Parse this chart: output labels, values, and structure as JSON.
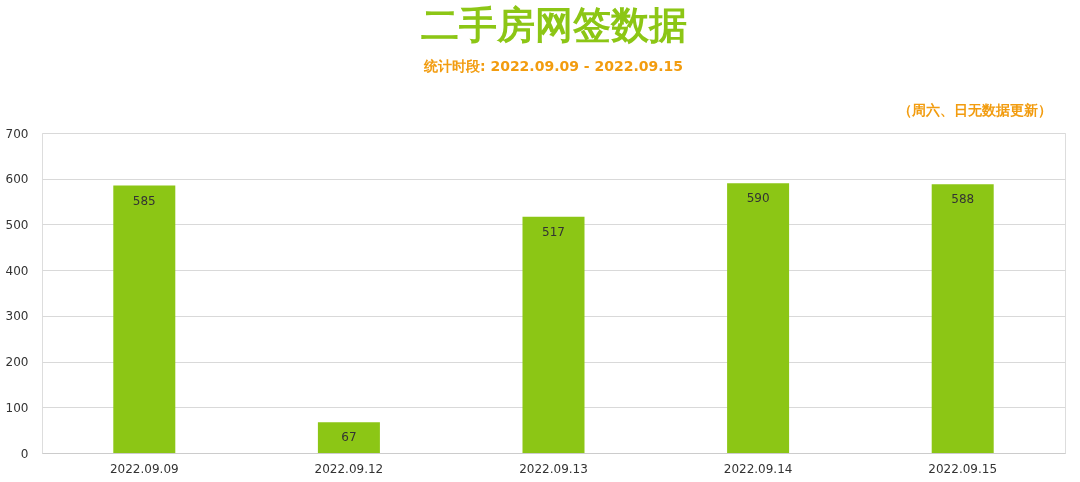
{
  "chart_data": {
    "type": "bar",
    "title": "二手房网签数据",
    "subtitle": "统计时段: 2022.09.09 - 2022.09.15",
    "annotations": [
      "（周六、日无数据更新）"
    ],
    "categories": [
      "2022.09.09",
      "2022.09.12",
      "2022.09.13",
      "2022.09.14",
      "2022.09.15"
    ],
    "values": [
      585,
      67,
      517,
      590,
      588
    ],
    "color": "#8cc615",
    "ylim": [
      0,
      700
    ],
    "yticks": [
      0,
      100,
      200,
      300,
      400,
      500,
      600,
      700
    ],
    "grid": "y",
    "data_labels": true
  }
}
